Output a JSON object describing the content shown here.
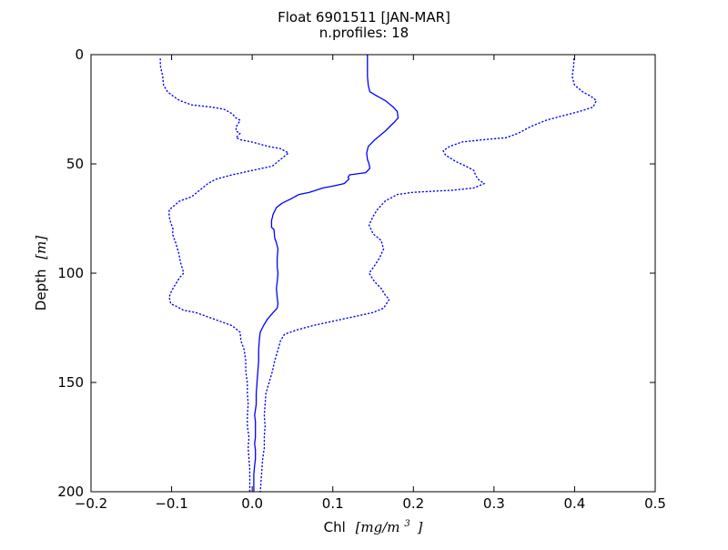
{
  "chart_data": {
    "type": "line",
    "title": "Float 6901511 [JAN-MAR]",
    "subtitle": "n.profiles: 18",
    "xlabel": {
      "prefix": "Chl",
      "unit": "[mg/m",
      "unit_exp": "3",
      "unit_close": "]"
    },
    "ylabel": {
      "prefix": "Depth",
      "unit": "[m]"
    },
    "xlim": [
      -0.2,
      0.5
    ],
    "ylim": [
      200,
      0
    ],
    "y_inverted": true,
    "xticks": [
      -0.2,
      -0.1,
      0.0,
      0.1,
      0.2,
      0.3,
      0.4,
      0.5
    ],
    "xtick_labels": [
      "−0.2",
      "−0.1",
      "0.0",
      "0.1",
      "0.2",
      "0.3",
      "0.4",
      "0.5"
    ],
    "yticks": [
      0,
      50,
      100,
      150,
      200
    ],
    "ytick_labels": [
      "0",
      "50",
      "100",
      "150",
      "200"
    ],
    "grid": false,
    "series": [
      {
        "style": "solid",
        "color": "#0000ff",
        "points": [
          [
            0.143,
            0
          ],
          [
            0.143,
            5
          ],
          [
            0.143,
            10
          ],
          [
            0.144,
            14
          ],
          [
            0.146,
            17
          ],
          [
            0.155,
            19
          ],
          [
            0.165,
            21
          ],
          [
            0.175,
            24
          ],
          [
            0.18,
            26
          ],
          [
            0.181,
            29
          ],
          [
            0.176,
            31
          ],
          [
            0.165,
            35
          ],
          [
            0.152,
            39
          ],
          [
            0.144,
            42
          ],
          [
            0.142,
            45
          ],
          [
            0.143,
            48
          ],
          [
            0.145,
            50
          ],
          [
            0.146,
            52
          ],
          [
            0.141,
            54
          ],
          [
            0.121,
            55
          ],
          [
            0.119,
            56
          ],
          [
            0.12,
            57
          ],
          [
            0.114,
            59
          ],
          [
            0.102,
            60
          ],
          [
            0.088,
            61
          ],
          [
            0.071,
            63
          ],
          [
            0.058,
            64
          ],
          [
            0.048,
            66
          ],
          [
            0.037,
            68
          ],
          [
            0.03,
            70
          ],
          [
            0.026,
            73
          ],
          [
            0.024,
            76
          ],
          [
            0.024,
            79
          ],
          [
            0.027,
            80
          ],
          [
            0.028,
            84
          ],
          [
            0.03,
            86
          ],
          [
            0.032,
            89
          ],
          [
            0.031,
            93
          ],
          [
            0.031,
            97
          ],
          [
            0.032,
            100
          ],
          [
            0.031,
            104
          ],
          [
            0.03,
            107
          ],
          [
            0.031,
            111
          ],
          [
            0.032,
            114
          ],
          [
            0.031,
            116
          ],
          [
            0.026,
            118
          ],
          [
            0.019,
            121
          ],
          [
            0.014,
            124
          ],
          [
            0.01,
            127
          ],
          [
            0.009,
            130
          ],
          [
            0.008,
            135
          ],
          [
            0.008,
            140
          ],
          [
            0.007,
            145
          ],
          [
            0.006,
            150
          ],
          [
            0.005,
            155
          ],
          [
            0.005,
            160
          ],
          [
            0.003,
            165
          ],
          [
            0.004,
            168
          ],
          [
            0.004,
            172
          ],
          [
            0.004,
            175
          ],
          [
            0.003,
            178
          ],
          [
            0.004,
            181
          ],
          [
            0.004,
            185
          ],
          [
            0.003,
            188
          ],
          [
            0.002,
            192
          ],
          [
            0.002,
            196
          ],
          [
            0.002,
            200
          ]
        ]
      },
      {
        "style": "dotted",
        "color": "#0000ff",
        "points": [
          [
            -0.114,
            2
          ],
          [
            -0.114,
            5
          ],
          [
            -0.111,
            10
          ],
          [
            -0.11,
            14
          ],
          [
            -0.105,
            17
          ],
          [
            -0.098,
            19
          ],
          [
            -0.09,
            21
          ],
          [
            -0.075,
            23
          ],
          [
            -0.05,
            24
          ],
          [
            -0.035,
            25
          ],
          [
            -0.025,
            27
          ],
          [
            -0.02,
            29
          ],
          [
            -0.015,
            30
          ],
          [
            -0.018,
            32
          ],
          [
            -0.02,
            33
          ],
          [
            -0.02,
            35
          ],
          [
            -0.015,
            36
          ],
          [
            -0.02,
            38
          ],
          [
            -0.014,
            39
          ],
          [
            0.0,
            40
          ],
          [
            0.02,
            42
          ],
          [
            0.035,
            43
          ],
          [
            0.045,
            45
          ],
          [
            0.035,
            48
          ],
          [
            0.025,
            51
          ],
          [
            0.0,
            53
          ],
          [
            -0.025,
            55
          ],
          [
            -0.045,
            57
          ],
          [
            -0.055,
            59
          ],
          [
            -0.065,
            62
          ],
          [
            -0.075,
            65
          ],
          [
            -0.09,
            67
          ],
          [
            -0.103,
            71
          ],
          [
            -0.103,
            74
          ],
          [
            -0.101,
            77
          ],
          [
            -0.098,
            80
          ],
          [
            -0.099,
            82
          ],
          [
            -0.095,
            86
          ],
          [
            -0.091,
            91
          ],
          [
            -0.089,
            95
          ],
          [
            -0.085,
            100
          ],
          [
            -0.09,
            102
          ],
          [
            -0.1,
            108
          ],
          [
            -0.103,
            111
          ],
          [
            -0.101,
            114
          ],
          [
            -0.095,
            115
          ],
          [
            -0.085,
            117
          ],
          [
            -0.07,
            118
          ],
          [
            -0.055,
            120
          ],
          [
            -0.04,
            122
          ],
          [
            -0.025,
            124
          ],
          [
            -0.015,
            127
          ],
          [
            -0.014,
            131
          ],
          [
            -0.01,
            135
          ],
          [
            -0.008,
            140
          ],
          [
            -0.008,
            145
          ],
          [
            -0.006,
            150
          ],
          [
            -0.006,
            155
          ],
          [
            -0.005,
            160
          ],
          [
            -0.006,
            165
          ],
          [
            -0.006,
            170
          ],
          [
            -0.004,
            175
          ],
          [
            -0.005,
            180
          ],
          [
            -0.004,
            185
          ],
          [
            -0.003,
            190
          ],
          [
            -0.003,
            195
          ],
          [
            -0.003,
            200
          ]
        ]
      },
      {
        "style": "dotted",
        "color": "#0000ff",
        "points": [
          [
            0.399,
            2
          ],
          [
            0.399,
            5
          ],
          [
            0.397,
            10
          ],
          [
            0.4,
            14
          ],
          [
            0.41,
            17
          ],
          [
            0.42,
            19
          ],
          [
            0.427,
            21
          ],
          [
            0.423,
            24
          ],
          [
            0.406,
            26
          ],
          [
            0.385,
            28
          ],
          [
            0.365,
            30
          ],
          [
            0.345,
            33
          ],
          [
            0.33,
            36
          ],
          [
            0.315,
            38
          ],
          [
            0.285,
            39
          ],
          [
            0.26,
            40
          ],
          [
            0.245,
            42
          ],
          [
            0.237,
            44
          ],
          [
            0.24,
            46
          ],
          [
            0.253,
            49
          ],
          [
            0.265,
            51
          ],
          [
            0.275,
            53
          ],
          [
            0.277,
            55
          ],
          [
            0.28,
            57
          ],
          [
            0.288,
            59
          ],
          [
            0.275,
            61
          ],
          [
            0.25,
            62
          ],
          [
            0.2,
            63
          ],
          [
            0.18,
            64
          ],
          [
            0.165,
            67
          ],
          [
            0.155,
            71
          ],
          [
            0.15,
            74
          ],
          [
            0.145,
            78
          ],
          [
            0.15,
            82
          ],
          [
            0.16,
            85
          ],
          [
            0.163,
            89
          ],
          [
            0.158,
            93
          ],
          [
            0.151,
            97
          ],
          [
            0.145,
            100
          ],
          [
            0.152,
            104
          ],
          [
            0.16,
            107
          ],
          [
            0.165,
            110
          ],
          [
            0.17,
            112
          ],
          [
            0.163,
            116
          ],
          [
            0.15,
            118
          ],
          [
            0.125,
            120
          ],
          [
            0.1,
            122
          ],
          [
            0.075,
            124
          ],
          [
            0.055,
            126
          ],
          [
            0.04,
            128
          ],
          [
            0.035,
            131
          ],
          [
            0.032,
            135
          ],
          [
            0.028,
            140
          ],
          [
            0.025,
            145
          ],
          [
            0.021,
            150
          ],
          [
            0.017,
            155
          ],
          [
            0.016,
            160
          ],
          [
            0.015,
            165
          ],
          [
            0.016,
            170
          ],
          [
            0.015,
            175
          ],
          [
            0.015,
            180
          ],
          [
            0.013,
            185
          ],
          [
            0.012,
            190
          ],
          [
            0.011,
            195
          ],
          [
            0.01,
            200
          ]
        ]
      }
    ]
  }
}
